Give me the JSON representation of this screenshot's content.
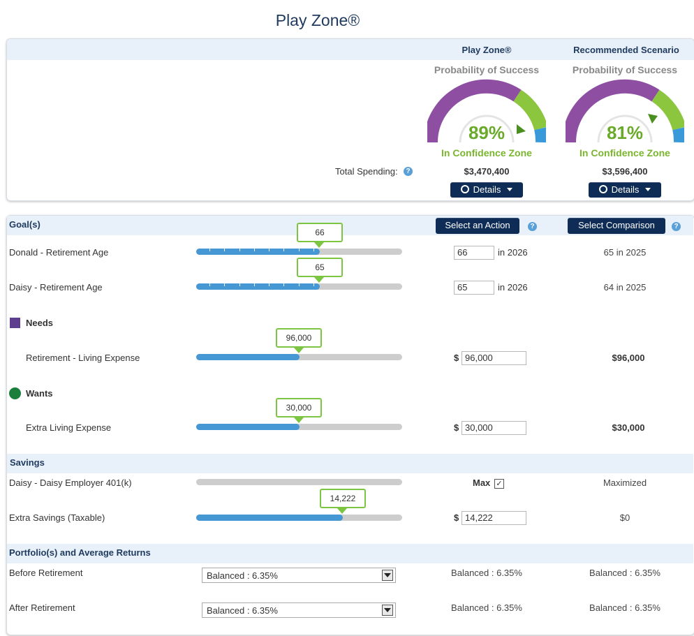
{
  "page_title": "Play Zone®",
  "summary": {
    "columns": [
      "Play Zone®",
      "Recommended Scenario"
    ],
    "gauges": [
      {
        "label": "Probability of Success",
        "percent": "89%",
        "zone": "In Confidence Zone",
        "spending": "$3,470,400",
        "details_label": "Details"
      },
      {
        "label": "Probability of Success",
        "percent": "81%",
        "zone": "In Confidence Zone",
        "spending": "$3,596,400",
        "details_label": "Details"
      }
    ],
    "total_spending_label": "Total Spending:",
    "help_glyph": "?",
    "gauge_colors": {
      "purple": "#8e4fa3",
      "green": "#8cc63f",
      "blue": "#3a9ad9"
    }
  },
  "goals": {
    "header": "Goal(s)",
    "action_button": "Select an Action",
    "comparison_button": "Select Comparison",
    "rows": [
      {
        "label": "Donald - Retirement Age",
        "bubble": "66",
        "fill": 0.6,
        "input": "66",
        "suffix": "in 2026",
        "compare": "65 in 2025"
      },
      {
        "label": "Daisy - Retirement Age",
        "bubble": "65",
        "fill": 0.6,
        "input": "65",
        "suffix": "in 2026",
        "compare": "64 in 2025"
      }
    ],
    "needs": {
      "title": "Needs",
      "color": "#5e3f8f",
      "row": {
        "label": "Retirement - Living Expense",
        "bubble": "96,000",
        "fill": 0.5,
        "currency": "$",
        "input": "96,000",
        "compare": "$96,000"
      }
    },
    "wants": {
      "title": "Wants",
      "color": "#1a7f3a",
      "row": {
        "label": "Extra Living Expense",
        "bubble": "30,000",
        "fill": 0.5,
        "currency": "$",
        "input": "30,000",
        "compare": "$30,000"
      }
    }
  },
  "savings": {
    "header": "Savings",
    "rows": [
      {
        "label": "Daisy - Daisy Employer 401(k)",
        "fill": 0,
        "max_label": "Max",
        "checked": "✓",
        "compare": "Maximized"
      },
      {
        "label": "Extra Savings (Taxable)",
        "bubble": "14,222",
        "fill": 0.71,
        "currency": "$",
        "input": "14,222",
        "compare": "$0"
      }
    ]
  },
  "portfolio": {
    "header": "Portfolio(s) and Average Returns",
    "rows": [
      {
        "label": "Before Retirement",
        "selected": "Balanced : 6.35%",
        "playzone": "Balanced : 6.35%",
        "recommended": "Balanced : 6.35%"
      },
      {
        "label": "After Retirement",
        "selected": "Balanced : 6.35%",
        "playzone": "Balanced : 6.35%",
        "recommended": "Balanced : 6.35%"
      }
    ]
  }
}
